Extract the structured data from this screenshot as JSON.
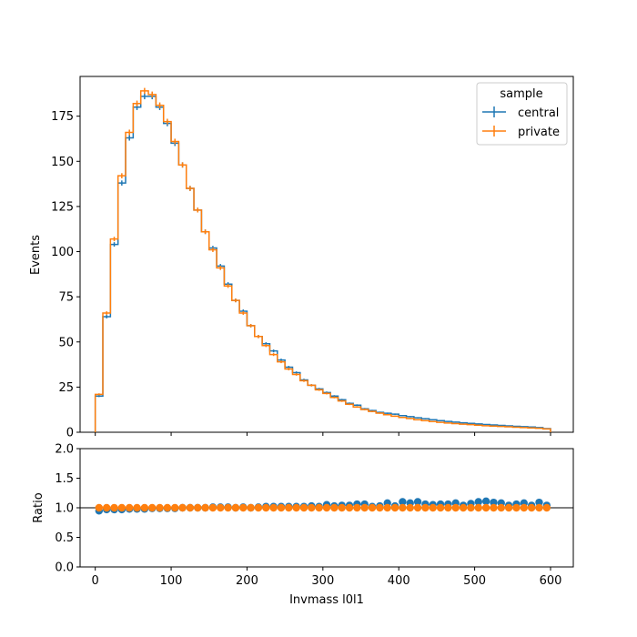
{
  "chart_data": [
    {
      "type": "line",
      "panel": "main",
      "xlabel": "",
      "ylabel": "Events",
      "ylim": [
        0,
        197
      ],
      "yticks": [
        0,
        25,
        50,
        75,
        100,
        125,
        150,
        175
      ],
      "legend": {
        "title": "sample",
        "placement": "top-right",
        "entries": [
          "central",
          "private"
        ]
      },
      "bin_edges": [
        0,
        10,
        20,
        30,
        40,
        50,
        60,
        70,
        80,
        90,
        100,
        110,
        120,
        130,
        140,
        150,
        160,
        170,
        180,
        190,
        200,
        210,
        220,
        230,
        240,
        250,
        260,
        270,
        280,
        290,
        300,
        310,
        320,
        330,
        340,
        350,
        360,
        370,
        380,
        390,
        400,
        410,
        420,
        430,
        440,
        450,
        460,
        470,
        480,
        490,
        500,
        510,
        520,
        530,
        540,
        550,
        560,
        570,
        580,
        590,
        600
      ],
      "series": [
        {
          "name": "central",
          "color": "#1f77b4",
          "values": [
            20,
            64,
            104,
            138,
            163,
            180,
            186,
            186,
            180,
            171,
            160,
            148,
            135,
            123,
            111,
            102,
            92,
            82,
            73,
            67,
            59,
            53,
            49,
            45,
            40,
            36,
            33,
            29,
            26,
            24,
            22,
            20,
            18,
            16,
            15,
            13,
            12,
            11,
            10.5,
            10,
            9.2,
            8.6,
            8.0,
            7.5,
            6.9,
            6.4,
            6.0,
            5.6,
            5.2,
            4.9,
            4.6,
            4.3,
            4.0,
            3.8,
            3.5,
            3.3,
            3.1,
            2.9,
            2.6,
            2.0
          ]
        },
        {
          "name": "private",
          "color": "#ff7f0e",
          "values": [
            21,
            66,
            107,
            142,
            166,
            182,
            189,
            187,
            181,
            172,
            161,
            148,
            135,
            123,
            111,
            101,
            91,
            81,
            73,
            66,
            59,
            53,
            48,
            43,
            39,
            35,
            32,
            28.5,
            26,
            23.5,
            21.5,
            19.3,
            17.3,
            15.5,
            14,
            12.6,
            11.5,
            10.6,
            9.7,
            8.9,
            8.2,
            7.6,
            6.9,
            6.4,
            5.9,
            5.5,
            5.1,
            4.8,
            4.5,
            4.2,
            3.9,
            3.6,
            3.4,
            3.2,
            3.0,
            2.8,
            2.6,
            2.4,
            2.2,
            1.8
          ]
        }
      ]
    },
    {
      "type": "scatter",
      "panel": "ratio",
      "xlabel": "Invmass l0l1",
      "ylabel": "Ratio",
      "xlim": [
        -20,
        630
      ],
      "ylim": [
        0,
        2
      ],
      "xticks": [
        0,
        100,
        200,
        300,
        400,
        500,
        600
      ],
      "yticks": [
        0.0,
        0.5,
        1.0,
        1.5,
        2.0
      ],
      "reference_line": 1.0,
      "x": [
        5,
        15,
        25,
        35,
        45,
        55,
        65,
        75,
        85,
        95,
        105,
        115,
        125,
        135,
        145,
        155,
        165,
        175,
        185,
        195,
        205,
        215,
        225,
        235,
        245,
        255,
        265,
        275,
        285,
        295,
        305,
        315,
        325,
        335,
        345,
        355,
        365,
        375,
        385,
        395,
        405,
        415,
        425,
        435,
        445,
        455,
        465,
        475,
        485,
        495,
        505,
        515,
        525,
        535,
        545,
        555,
        565,
        575,
        585,
        595
      ],
      "series": [
        {
          "name": "central",
          "color": "#1f77b4",
          "values": [
            0.95,
            0.97,
            0.97,
            0.97,
            0.98,
            0.98,
            0.98,
            0.99,
            0.99,
            0.99,
            0.99,
            1.0,
            1.0,
            1.0,
            1.0,
            1.01,
            1.01,
            1.01,
            1.0,
            1.01,
            1.0,
            1.01,
            1.02,
            1.02,
            1.02,
            1.02,
            1.02,
            1.02,
            1.03,
            1.02,
            1.05,
            1.03,
            1.04,
            1.04,
            1.06,
            1.06,
            1.02,
            1.03,
            1.08,
            1.03,
            1.1,
            1.08,
            1.1,
            1.06,
            1.05,
            1.06,
            1.06,
            1.08,
            1.04,
            1.07,
            1.1,
            1.11,
            1.09,
            1.08,
            1.04,
            1.06,
            1.08,
            1.04,
            1.09,
            1.04
          ]
        },
        {
          "name": "private",
          "color": "#ff7f0e",
          "values": [
            1.0,
            1.0,
            1.0,
            1.0,
            1.0,
            1.0,
            1.0,
            1.0,
            1.0,
            1.0,
            1.0,
            1.0,
            1.0,
            1.0,
            1.0,
            1.0,
            1.0,
            1.0,
            1.0,
            1.0,
            1.0,
            1.0,
            1.0,
            1.0,
            1.0,
            1.0,
            1.0,
            1.0,
            1.0,
            1.0,
            1.0,
            1.0,
            1.0,
            1.0,
            1.0,
            1.0,
            1.0,
            1.0,
            1.0,
            1.0,
            1.0,
            1.0,
            1.0,
            1.0,
            1.0,
            1.0,
            1.0,
            1.0,
            1.0,
            1.0,
            1.0,
            1.0,
            1.0,
            1.0,
            1.0,
            1.0,
            1.0,
            1.0,
            1.0,
            1.0
          ]
        }
      ]
    }
  ]
}
